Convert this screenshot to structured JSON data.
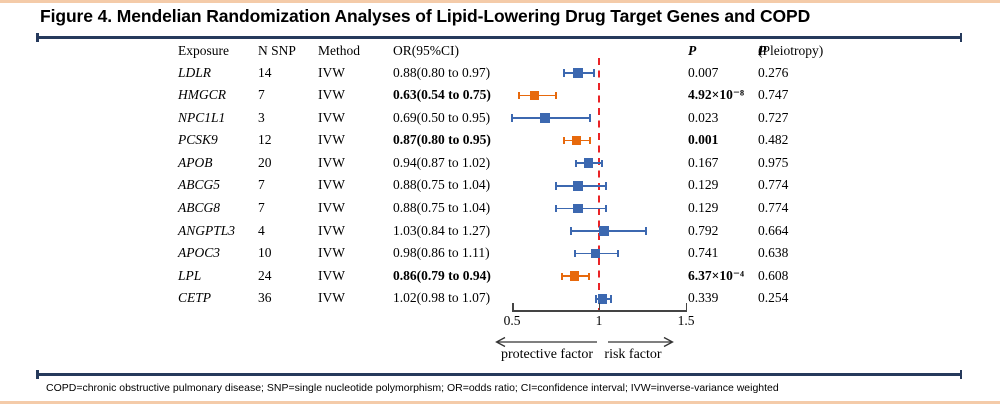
{
  "title": "Figure 4. Mendelian Randomization Analyses of Lipid-Lowering Drug Target Genes and COPD",
  "footer": "COPD=chronic obstructive pulmonary disease; SNP=single nucleotide polymorphism; OR=odds ratio; CI=confidence interval; IVW=inverse-variance weighted",
  "colors": {
    "peach_border": "#f4cba9",
    "rule_navy": "#263a5c",
    "marker_blue": "#3c68b0",
    "marker_orange": "#e7690c",
    "ref_line_red": "#ea2327"
  },
  "table": {
    "headers": {
      "exposure": "Exposure",
      "n_snp": "N SNP",
      "method": "Method",
      "or_ci": "OR(95%CI)",
      "p": "P",
      "p_pleiotropy_prefix": "P",
      "p_pleiotropy_suffix": "(Pleiotropy)"
    }
  },
  "chart_data": {
    "type": "forest",
    "title": "Mendelian Randomization Analyses of Lipid-Lowering Drug Target Genes and COPD",
    "x_axis": {
      "range": [
        0.5,
        1.5
      ],
      "ref_line": 1.0
    },
    "axis_ticks": [
      "0.5",
      "1",
      "1.5"
    ],
    "direction_labels": {
      "left": "protective factor",
      "right": "risk factor"
    },
    "rows": [
      {
        "exposure": "LDLR",
        "n_snp": "14",
        "method": "IVW",
        "or_ci": "0.88(0.80 to 0.97)",
        "or": 0.88,
        "ci_low": 0.8,
        "ci_high": 0.97,
        "p": "0.007",
        "p_pleiotropy": "0.276",
        "significant": false
      },
      {
        "exposure": "HMGCR",
        "n_snp": "7",
        "method": "IVW",
        "or_ci": "0.63(0.54 to 0.75)",
        "or": 0.63,
        "ci_low": 0.54,
        "ci_high": 0.75,
        "p": "4.92×10⁻⁸",
        "p_pleiotropy": "0.747",
        "significant": true
      },
      {
        "exposure": "NPC1L1",
        "n_snp": "3",
        "method": "IVW",
        "or_ci": "0.69(0.50 to 0.95)",
        "or": 0.69,
        "ci_low": 0.5,
        "ci_high": 0.95,
        "p": "0.023",
        "p_pleiotropy": "0.727",
        "significant": false
      },
      {
        "exposure": "PCSK9",
        "n_snp": "12",
        "method": "IVW",
        "or_ci": "0.87(0.80 to 0.95)",
        "or": 0.87,
        "ci_low": 0.8,
        "ci_high": 0.95,
        "p": "0.001",
        "p_pleiotropy": "0.482",
        "significant": true
      },
      {
        "exposure": "APOB",
        "n_snp": "20",
        "method": "IVW",
        "or_ci": "0.94(0.87 to 1.02)",
        "or": 0.94,
        "ci_low": 0.87,
        "ci_high": 1.02,
        "p": "0.167",
        "p_pleiotropy": "0.975",
        "significant": false
      },
      {
        "exposure": "ABCG5",
        "n_snp": "7",
        "method": "IVW",
        "or_ci": "0.88(0.75 to 1.04)",
        "or": 0.88,
        "ci_low": 0.75,
        "ci_high": 1.04,
        "p": "0.129",
        "p_pleiotropy": "0.774",
        "significant": false
      },
      {
        "exposure": "ABCG8",
        "n_snp": "7",
        "method": "IVW",
        "or_ci": "0.88(0.75 to 1.04)",
        "or": 0.88,
        "ci_low": 0.75,
        "ci_high": 1.04,
        "p": "0.129",
        "p_pleiotropy": "0.774",
        "significant": false
      },
      {
        "exposure": "ANGPTL3",
        "n_snp": "4",
        "method": "IVW",
        "or_ci": "1.03(0.84 to 1.27)",
        "or": 1.03,
        "ci_low": 0.84,
        "ci_high": 1.27,
        "p": "0.792",
        "p_pleiotropy": "0.664",
        "significant": false
      },
      {
        "exposure": "APOC3",
        "n_snp": "10",
        "method": "IVW",
        "or_ci": "0.98(0.86 to 1.11)",
        "or": 0.98,
        "ci_low": 0.86,
        "ci_high": 1.11,
        "p": "0.741",
        "p_pleiotropy": "0.638",
        "significant": false
      },
      {
        "exposure": "LPL",
        "n_snp": "24",
        "method": "IVW",
        "or_ci": "0.86(0.79 to 0.94)",
        "or": 0.86,
        "ci_low": 0.79,
        "ci_high": 0.94,
        "p": "6.37×10⁻⁴",
        "p_pleiotropy": "0.608",
        "significant": true
      },
      {
        "exposure": "CETP",
        "n_snp": "36",
        "method": "IVW",
        "or_ci": "1.02(0.98 to 1.07)",
        "or": 1.02,
        "ci_low": 0.98,
        "ci_high": 1.07,
        "p": "0.339",
        "p_pleiotropy": "0.254",
        "significant": false
      }
    ]
  }
}
